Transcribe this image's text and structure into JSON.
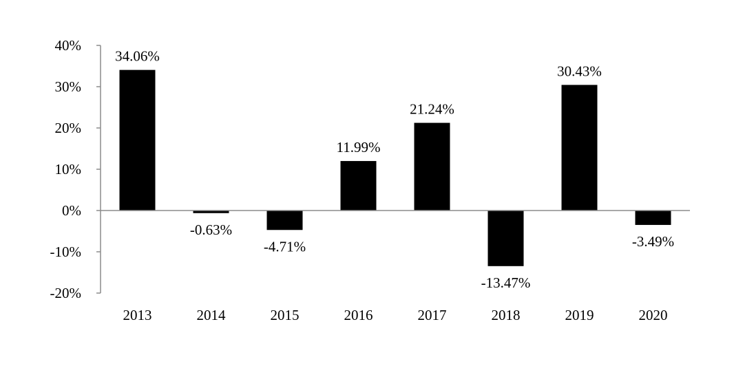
{
  "chart_data": {
    "type": "bar",
    "title": "",
    "xlabel": "",
    "ylabel": "",
    "categories": [
      "2013",
      "2014",
      "2015",
      "2016",
      "2017",
      "2018",
      "2019",
      "2020"
    ],
    "values": [
      34.06,
      -0.63,
      -4.71,
      11.99,
      21.24,
      -13.47,
      30.43,
      -3.49
    ],
    "data_labels": [
      "34.06%",
      "-0.63%",
      "-4.71%",
      "11.99%",
      "21.24%",
      "-13.47%",
      "30.43%",
      "-3.49%"
    ],
    "ylim": [
      -20,
      40
    ],
    "yticks": [
      40,
      30,
      20,
      10,
      0,
      -10,
      -20
    ],
    "ytick_labels": [
      "40%",
      "30%",
      "20%",
      "10%",
      "0%",
      "-10%",
      "-20%"
    ],
    "bar_color": "#000000",
    "axis_color": "#8c8c8c",
    "grid": false,
    "legend": "none"
  }
}
